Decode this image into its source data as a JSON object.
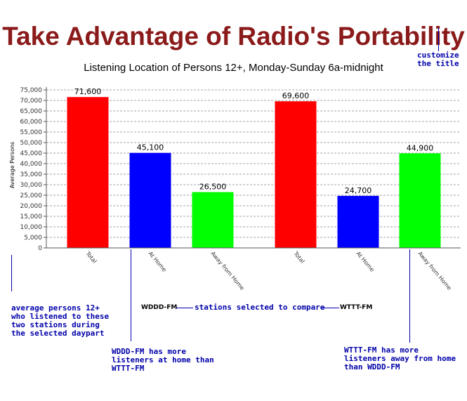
{
  "headline": "Take Advantage of Radio's Portability",
  "notes": {
    "customize": "customize\nthe title",
    "average": "average persons 12+\nwho listened to these\ntwo stations during\nthe selected daypart",
    "stations_selected": "stations selected to compare",
    "wddd_home": "WDDD-FM has more\nlisteners at home than\nWTTT-FM",
    "wttt_away": "WTTT-FM has more\nlisteners away from home\nthan WDDD-FM"
  },
  "stations": {
    "left": "WDDD-FM",
    "right": "WTTT-FM"
  },
  "colors": {
    "total": "#ff0000",
    "home": "#0000ff",
    "away": "#00ff00",
    "headline": "#8b1a1a",
    "note": "#0000aa"
  },
  "chart_data": {
    "type": "bar",
    "title": "Listening Location of Persons 12+, Monday-Sunday 6a-midnight",
    "ylabel": "Average Persons",
    "ylim": [
      0,
      75000
    ],
    "yticks": [
      "0",
      "5,000",
      "10,000",
      "15,000",
      "20,000",
      "25,000",
      "30,000",
      "35,000",
      "40,000",
      "45,000",
      "50,000",
      "55,000",
      "60,000",
      "65,000",
      "70,000",
      "75,000"
    ],
    "grid": true,
    "categories": [
      "Total",
      "At Home",
      "Away from Home",
      "Total",
      "At Home",
      "Away from Home"
    ],
    "values": [
      71600,
      45100,
      26500,
      69600,
      24700,
      44900
    ],
    "value_labels": [
      "71,600",
      "45,100",
      "26,500",
      "69,600",
      "24,700",
      "44,900"
    ],
    "bar_colors": [
      "#ff0000",
      "#0000ff",
      "#00ff00",
      "#ff0000",
      "#0000ff",
      "#00ff00"
    ]
  }
}
